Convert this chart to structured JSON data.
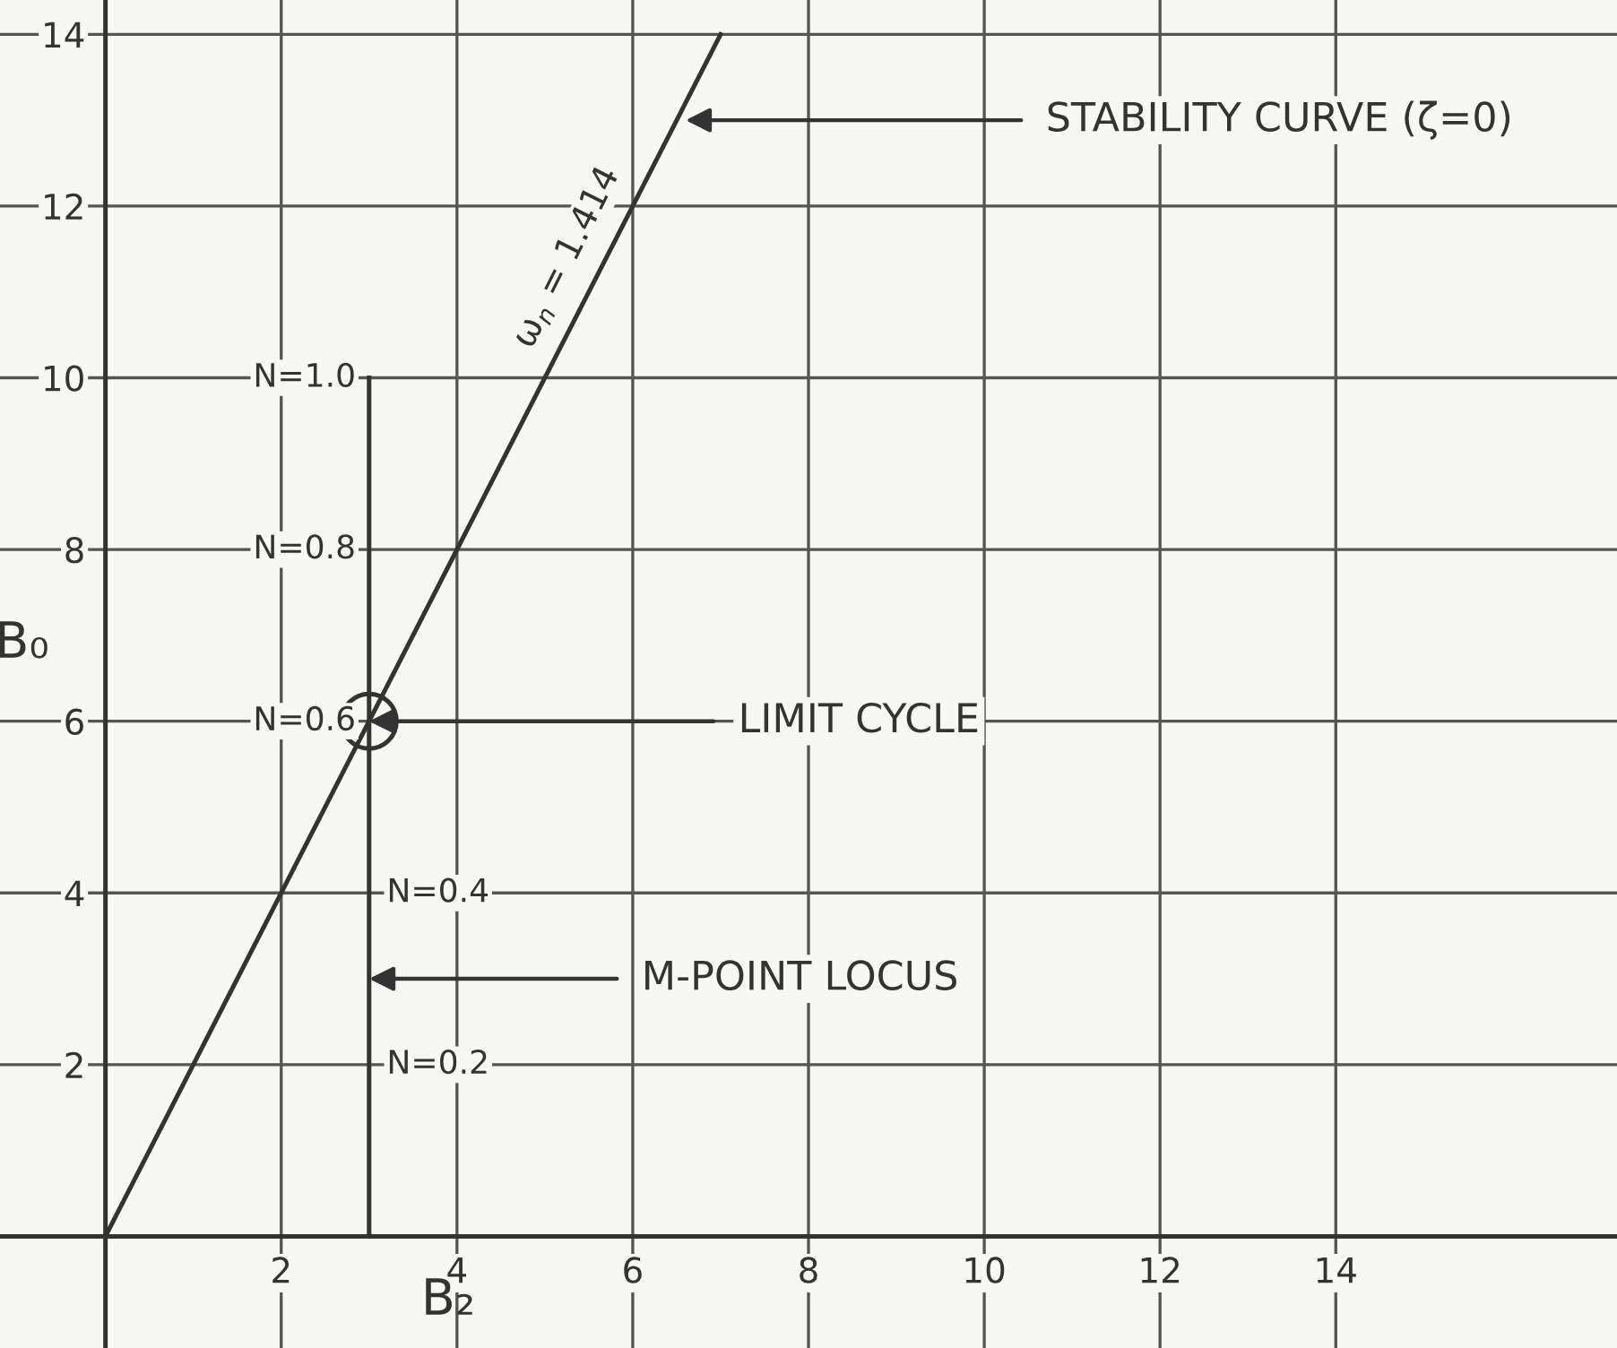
{
  "chart_data": {
    "type": "line",
    "xlabel": "B₂",
    "ylabel": "B₀",
    "xlim": [
      -1.2,
      17.2
    ],
    "ylim": [
      -1.3,
      14.4
    ],
    "xticks": [
      2,
      4,
      6,
      8,
      10,
      12,
      14
    ],
    "yticks": [
      2,
      4,
      6,
      8,
      10,
      12,
      14
    ],
    "grid": true,
    "series": [
      {
        "color": "#333333",
        "x": [
          0,
          7
        ],
        "values": [
          0,
          14
        ]
      },
      {
        "color": "#333333",
        "x": [
          3,
          3
        ],
        "values": [
          0,
          10
        ]
      },
      {
        "type": "scatter",
        "color": "#333333",
        "marker": "circle",
        "x": [
          3
        ],
        "values": [
          6
        ]
      }
    ],
    "annotations": [
      {
        "text": "STABILITY CURVE (ζ=0)",
        "x": 6.6,
        "y": 13
      },
      {
        "text": "LIMIT CYCLE",
        "x": 3,
        "y": 6
      },
      {
        "text": "M-POINT LOCUS",
        "x": 3,
        "y": 3
      },
      {
        "text": "ω$_{n}$ = 1.414",
        "x": 5.6,
        "y": 11.2
      },
      {
        "text": "N=1.0",
        "x": 3,
        "y": 10
      },
      {
        "text": "N=0.8",
        "x": 3,
        "y": 8
      },
      {
        "text": "N=0.6",
        "x": 3,
        "y": 6
      },
      {
        "text": "N=0.4",
        "x": 3,
        "y": 4
      },
      {
        "text": "N=0.2",
        "x": 3,
        "y": 2
      }
    ]
  }
}
